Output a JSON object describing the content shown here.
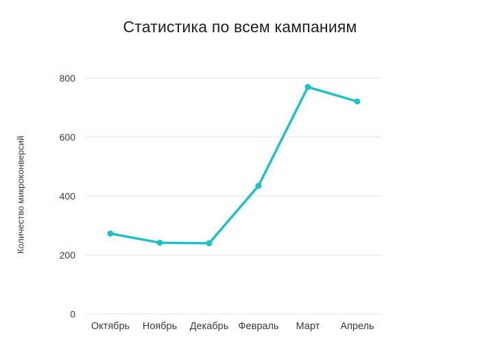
{
  "chart_data": {
    "type": "line",
    "title": "Статистика по всем кампаниям",
    "xlabel": "",
    "ylabel": "Количество микроконверсий",
    "categories": [
      "Октябрь",
      "Ноябрь",
      "Декабрь",
      "Февраль",
      "Март",
      "Апрель"
    ],
    "values": [
      273,
      242,
      240,
      435,
      770,
      721
    ],
    "yticks": [
      0,
      200,
      400,
      600,
      800
    ],
    "ylim": [
      0,
      800
    ],
    "grid": true,
    "legend": "none",
    "marker": "circle"
  },
  "colors": {
    "line": "#1fc0c8",
    "grid": "#e2e2e2",
    "axis_text": "#3a3a3a",
    "title_text": "#1e1e1e",
    "background": "#ffffff"
  }
}
